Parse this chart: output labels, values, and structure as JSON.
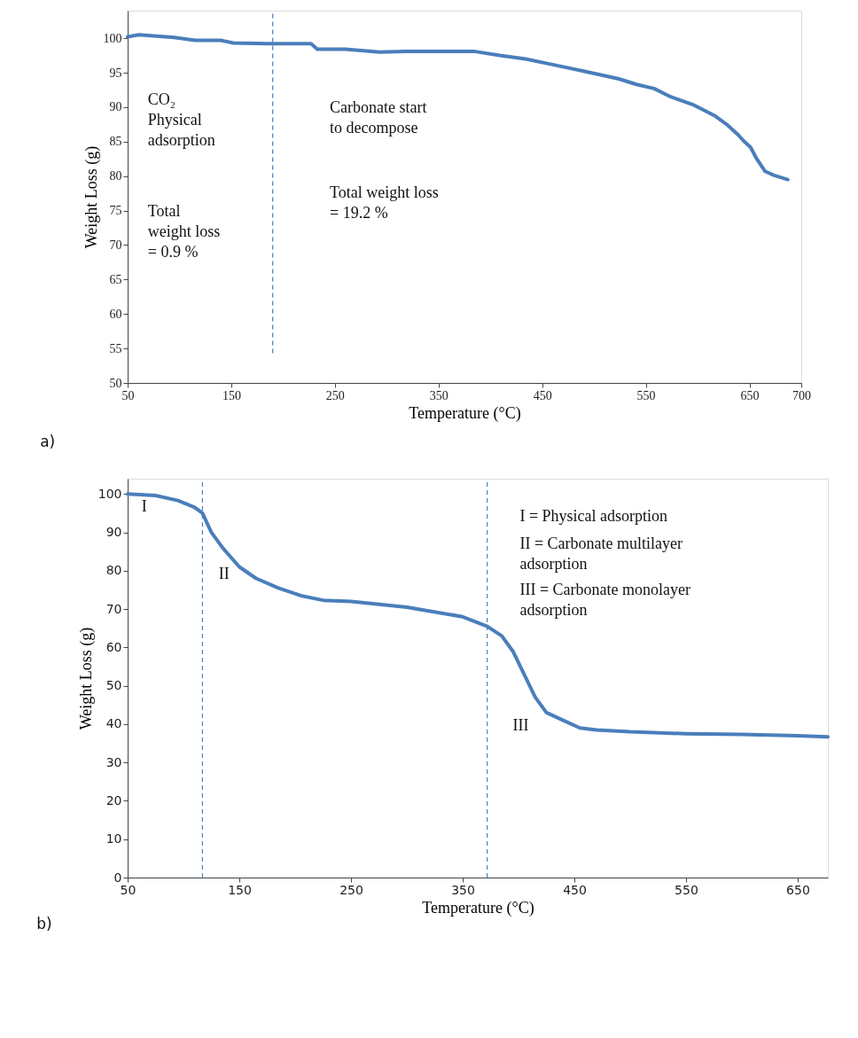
{
  "chart_data": [
    {
      "type": "line",
      "xlabel": "Temperature (°C)",
      "ylabel": "Weight Loss (g)",
      "x": [
        50,
        61,
        95,
        115,
        140,
        152,
        185,
        227,
        233,
        260,
        293,
        318,
        384,
        409,
        434,
        459,
        491,
        524,
        541,
        558,
        574,
        595,
        616,
        628,
        639,
        645,
        651,
        657,
        665,
        674,
        687
      ],
      "series": [
        {
          "color": "#4a7ebb",
          "values": [
            100.2,
            100.5,
            100.1,
            99.7,
            99.7,
            99.3,
            99.2,
            99.2,
            98.4,
            98.4,
            98.0,
            98.1,
            98.1,
            97.5,
            97.0,
            96.2,
            95.2,
            94.1,
            93.3,
            92.7,
            91.5,
            90.4,
            88.8,
            87.5,
            86.0,
            85.0,
            84.2,
            82.5,
            80.7,
            80.1,
            79.5
          ]
        }
      ],
      "xlim": [
        50,
        700
      ],
      "xticks": [
        50,
        150,
        250,
        350,
        450,
        550,
        650,
        700
      ],
      "ylim": [
        50,
        104
      ],
      "yticks": [
        50,
        55,
        60,
        65,
        70,
        75,
        80,
        85,
        90,
        95,
        100
      ],
      "ref_lines": [
        {
          "axis": "x",
          "value": 190,
          "color": "#4a7ebb",
          "line_style": "dashed"
        }
      ],
      "annotations": [
        "CO₂\nPhysical\nadsorption",
        "Total\nweight loss\n= 0.9 %",
        "Carbonate start\nto decompose",
        "Total weight loss\n= 19.2 %",
        "a)"
      ],
      "grid": false,
      "marker": "none",
      "line_style": "solid"
    },
    {
      "type": "line",
      "xlabel": "Temperature (°C)",
      "ylabel": "Weight Loss (g)",
      "x": [
        50,
        75,
        95,
        110,
        117,
        125,
        135,
        150,
        165,
        185,
        205,
        225,
        250,
        300,
        330,
        350,
        372,
        385,
        395,
        405,
        415,
        425,
        440,
        455,
        470,
        500,
        550,
        600,
        650,
        677
      ],
      "series": [
        {
          "color": "#4a7ebb",
          "values": [
            100,
            99.6,
            98.3,
            96.5,
            95,
            90,
            86,
            81,
            78,
            75.5,
            73.5,
            72.3,
            72,
            70.5,
            69,
            68,
            65.5,
            63,
            59,
            53,
            47,
            43,
            41,
            39,
            38.5,
            38,
            37.5,
            37.3,
            37,
            36.7
          ]
        }
      ],
      "xlim": [
        50,
        677
      ],
      "xticks": [
        50,
        150,
        250,
        350,
        450,
        550,
        650
      ],
      "ylim": [
        0,
        104
      ],
      "yticks": [
        0,
        10,
        20,
        30,
        40,
        50,
        60,
        70,
        80,
        90,
        100
      ],
      "ref_lines": [
        {
          "axis": "x",
          "value": 117,
          "color": "#4a7ebb",
          "line_style": "dashed"
        },
        {
          "axis": "x",
          "value": 372,
          "color": "#4a7ebb",
          "line_style": "dashed"
        }
      ],
      "annotations": [
        "I",
        "II",
        "III",
        "I   = Physical adsorption",
        "II  = Carbonate multilayer\n       adsorption",
        "III = Carbonate monolayer\n       adsorption",
        "b)"
      ],
      "grid": false,
      "marker": "none",
      "line_style": "solid"
    }
  ]
}
